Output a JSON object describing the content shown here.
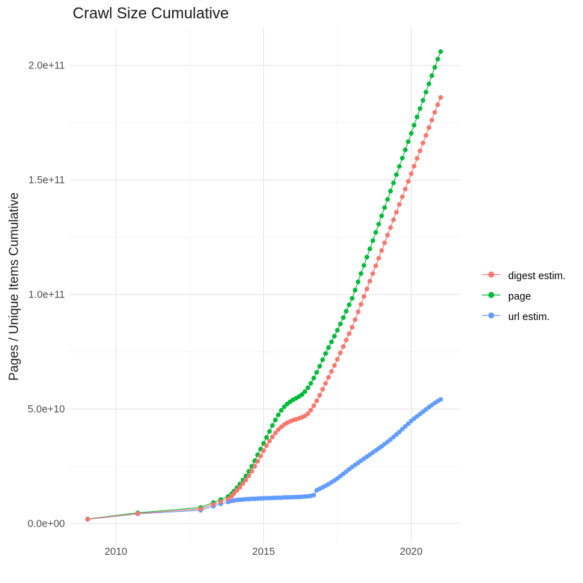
{
  "title": "Crawl Size Cumulative",
  "y_axis_title": "Pages / Unique Items Cumulative",
  "legend": {
    "position": "right",
    "items": [
      {
        "label": "digest estim.",
        "color": "#F8766D"
      },
      {
        "label": "page",
        "color": "#00BA38"
      },
      {
        "label": "url estim.",
        "color": "#619CFF"
      }
    ]
  },
  "colors": {
    "background": "#ffffff",
    "grid_major": "#e5e5e5",
    "grid_minor": "#f2f2f2",
    "axis_text": "#4d4d4d",
    "title_text": "#1a1a1a"
  },
  "chart_data": {
    "type": "scatter",
    "title": "Crawl Size Cumulative",
    "xlabel": "",
    "ylabel": "Pages / Unique Items Cumulative",
    "grid": true,
    "legend_position": "right",
    "x_unit": "year (decimal)",
    "y_unit": "items, value stored in units of 1e10",
    "xlim": [
      2008.44,
      2021.66
    ],
    "ylim_e10": [
      -0.84,
      21.62
    ],
    "x_ticks": [
      {
        "value": 2010,
        "label": "2010"
      },
      {
        "value": 2015,
        "label": "2015"
      },
      {
        "value": 2020,
        "label": "2020"
      }
    ],
    "x_minor_ticks": [
      2012.5,
      2017.5
    ],
    "y_ticks": [
      {
        "value_e10": 0,
        "label": "0.0e+00"
      },
      {
        "value_e10": 5,
        "label": "5.0e+10"
      },
      {
        "value_e10": 10,
        "label": "1.0e+11"
      },
      {
        "value_e10": 15,
        "label": "1.5e+11"
      },
      {
        "value_e10": 20,
        "label": "2.0e+11"
      }
    ],
    "y_minor_ticks_e10": [
      2.5,
      7.5,
      12.5,
      17.5
    ],
    "series": [
      {
        "name": "digest estim.",
        "color": "#F8766D",
        "points": [
          [
            2009.04,
            0.19
          ],
          [
            2010.74,
            0.44
          ],
          [
            2012.87,
            0.64
          ],
          [
            2013.3,
            0.84
          ],
          [
            2013.55,
            0.96
          ],
          [
            2013.8,
            1.08
          ],
          [
            2013.92,
            1.2
          ],
          [
            2014.0,
            1.32
          ],
          [
            2014.1,
            1.45
          ],
          [
            2014.2,
            1.59
          ],
          [
            2014.3,
            1.74
          ],
          [
            2014.4,
            1.9
          ],
          [
            2014.5,
            2.08
          ],
          [
            2014.6,
            2.28
          ],
          [
            2014.7,
            2.5
          ],
          [
            2014.8,
            2.72
          ],
          [
            2014.9,
            2.95
          ],
          [
            2015.0,
            3.18
          ],
          [
            2015.1,
            3.4
          ],
          [
            2015.2,
            3.6
          ],
          [
            2015.3,
            3.78
          ],
          [
            2015.4,
            3.95
          ],
          [
            2015.5,
            4.1
          ],
          [
            2015.6,
            4.22
          ],
          [
            2015.7,
            4.32
          ],
          [
            2015.8,
            4.4
          ],
          [
            2015.9,
            4.46
          ],
          [
            2016.0,
            4.51
          ],
          [
            2016.1,
            4.55
          ],
          [
            2016.2,
            4.59
          ],
          [
            2016.3,
            4.64
          ],
          [
            2016.4,
            4.7
          ],
          [
            2016.5,
            4.8
          ],
          [
            2016.6,
            4.95
          ],
          [
            2016.7,
            5.14
          ],
          [
            2016.8,
            5.36
          ],
          [
            2016.9,
            5.6
          ],
          [
            2017.0,
            5.86
          ],
          [
            2017.1,
            6.12
          ],
          [
            2017.2,
            6.38
          ],
          [
            2017.3,
            6.64
          ],
          [
            2017.4,
            6.9
          ],
          [
            2017.5,
            7.17
          ],
          [
            2017.6,
            7.45
          ],
          [
            2017.7,
            7.73
          ],
          [
            2017.8,
            8.01
          ],
          [
            2017.9,
            8.29
          ],
          [
            2018.0,
            8.57
          ],
          [
            2018.1,
            8.9
          ],
          [
            2018.2,
            9.24
          ],
          [
            2018.3,
            9.57
          ],
          [
            2018.4,
            9.91
          ],
          [
            2018.5,
            10.24
          ],
          [
            2018.6,
            10.58
          ],
          [
            2018.7,
            10.91
          ],
          [
            2018.8,
            11.25
          ],
          [
            2018.9,
            11.58
          ],
          [
            2019.0,
            11.92
          ],
          [
            2019.1,
            12.25
          ],
          [
            2019.2,
            12.59
          ],
          [
            2019.3,
            12.92
          ],
          [
            2019.4,
            13.26
          ],
          [
            2019.5,
            13.59
          ],
          [
            2019.6,
            13.93
          ],
          [
            2019.7,
            14.26
          ],
          [
            2019.8,
            14.6
          ],
          [
            2019.9,
            14.93
          ],
          [
            2020.0,
            15.27
          ],
          [
            2020.1,
            15.6
          ],
          [
            2020.2,
            15.94
          ],
          [
            2020.3,
            16.27
          ],
          [
            2020.4,
            16.61
          ],
          [
            2020.5,
            16.94
          ],
          [
            2020.6,
            17.28
          ],
          [
            2020.7,
            17.61
          ],
          [
            2020.8,
            17.95
          ],
          [
            2020.9,
            18.28
          ],
          [
            2021.0,
            18.6
          ]
        ]
      },
      {
        "name": "page",
        "color": "#00BA38",
        "points": [
          [
            2009.04,
            0.2
          ],
          [
            2010.74,
            0.47
          ],
          [
            2012.87,
            0.7
          ],
          [
            2013.3,
            0.92
          ],
          [
            2013.55,
            1.05
          ],
          [
            2013.8,
            1.18
          ],
          [
            2013.92,
            1.3
          ],
          [
            2014.0,
            1.42
          ],
          [
            2014.1,
            1.57
          ],
          [
            2014.2,
            1.73
          ],
          [
            2014.3,
            1.9
          ],
          [
            2014.4,
            2.08
          ],
          [
            2014.5,
            2.28
          ],
          [
            2014.6,
            2.5
          ],
          [
            2014.7,
            2.74
          ],
          [
            2014.8,
            3.0
          ],
          [
            2014.9,
            3.25
          ],
          [
            2015.0,
            3.5
          ],
          [
            2015.1,
            3.76
          ],
          [
            2015.2,
            4.02
          ],
          [
            2015.3,
            4.28
          ],
          [
            2015.4,
            4.52
          ],
          [
            2015.5,
            4.74
          ],
          [
            2015.6,
            4.94
          ],
          [
            2015.7,
            5.1
          ],
          [
            2015.8,
            5.22
          ],
          [
            2015.9,
            5.32
          ],
          [
            2016.0,
            5.4
          ],
          [
            2016.1,
            5.47
          ],
          [
            2016.2,
            5.54
          ],
          [
            2016.3,
            5.63
          ],
          [
            2016.4,
            5.76
          ],
          [
            2016.5,
            5.93
          ],
          [
            2016.6,
            6.12
          ],
          [
            2016.7,
            6.35
          ],
          [
            2016.8,
            6.6
          ],
          [
            2016.9,
            6.87
          ],
          [
            2017.0,
            7.15
          ],
          [
            2017.1,
            7.42
          ],
          [
            2017.2,
            7.68
          ],
          [
            2017.3,
            7.93
          ],
          [
            2017.4,
            8.18
          ],
          [
            2017.5,
            8.44
          ],
          [
            2017.6,
            8.71
          ],
          [
            2017.7,
            8.99
          ],
          [
            2017.8,
            9.27
          ],
          [
            2017.9,
            9.55
          ],
          [
            2018.0,
            9.83
          ],
          [
            2018.1,
            10.19
          ],
          [
            2018.2,
            10.55
          ],
          [
            2018.3,
            10.91
          ],
          [
            2018.4,
            11.27
          ],
          [
            2018.5,
            11.63
          ],
          [
            2018.6,
            11.99
          ],
          [
            2018.7,
            12.35
          ],
          [
            2018.8,
            12.71
          ],
          [
            2018.9,
            13.07
          ],
          [
            2019.0,
            13.43
          ],
          [
            2019.1,
            13.79
          ],
          [
            2019.2,
            14.15
          ],
          [
            2019.3,
            14.51
          ],
          [
            2019.4,
            14.87
          ],
          [
            2019.5,
            15.23
          ],
          [
            2019.6,
            15.59
          ],
          [
            2019.7,
            15.95
          ],
          [
            2019.8,
            16.31
          ],
          [
            2019.9,
            16.67
          ],
          [
            2020.0,
            17.03
          ],
          [
            2020.1,
            17.39
          ],
          [
            2020.2,
            17.75
          ],
          [
            2020.3,
            18.11
          ],
          [
            2020.4,
            18.47
          ],
          [
            2020.5,
            18.83
          ],
          [
            2020.6,
            19.19
          ],
          [
            2020.7,
            19.55
          ],
          [
            2020.8,
            19.91
          ],
          [
            2020.9,
            20.27
          ],
          [
            2021.0,
            20.6
          ]
        ]
      },
      {
        "name": "url estim.",
        "color": "#619CFF",
        "points": [
          [
            2009.04,
            0.18
          ],
          [
            2010.74,
            0.42
          ],
          [
            2012.87,
            0.58
          ],
          [
            2013.3,
            0.76
          ],
          [
            2013.55,
            0.86
          ],
          [
            2013.8,
            0.94
          ],
          [
            2013.92,
            0.99
          ],
          [
            2014.0,
            1.01
          ],
          [
            2014.1,
            1.03
          ],
          [
            2014.2,
            1.04
          ],
          [
            2014.3,
            1.05
          ],
          [
            2014.4,
            1.06
          ],
          [
            2014.5,
            1.07
          ],
          [
            2014.6,
            1.08
          ],
          [
            2014.7,
            1.08
          ],
          [
            2014.8,
            1.09
          ],
          [
            2014.9,
            1.1
          ],
          [
            2015.0,
            1.1
          ],
          [
            2015.1,
            1.11
          ],
          [
            2015.2,
            1.11
          ],
          [
            2015.3,
            1.12
          ],
          [
            2015.4,
            1.12
          ],
          [
            2015.5,
            1.13
          ],
          [
            2015.6,
            1.13
          ],
          [
            2015.7,
            1.14
          ],
          [
            2015.8,
            1.14
          ],
          [
            2015.9,
            1.15
          ],
          [
            2016.0,
            1.15
          ],
          [
            2016.1,
            1.16
          ],
          [
            2016.2,
            1.16
          ],
          [
            2016.3,
            1.17
          ],
          [
            2016.4,
            1.18
          ],
          [
            2016.5,
            1.19
          ],
          [
            2016.6,
            1.21
          ],
          [
            2016.7,
            1.24
          ],
          [
            2016.8,
            1.45
          ],
          [
            2016.9,
            1.52
          ],
          [
            2017.0,
            1.58
          ],
          [
            2017.1,
            1.65
          ],
          [
            2017.2,
            1.72
          ],
          [
            2017.3,
            1.8
          ],
          [
            2017.4,
            1.88
          ],
          [
            2017.5,
            1.97
          ],
          [
            2017.6,
            2.07
          ],
          [
            2017.7,
            2.17
          ],
          [
            2017.8,
            2.27
          ],
          [
            2017.9,
            2.37
          ],
          [
            2018.0,
            2.47
          ],
          [
            2018.1,
            2.56
          ],
          [
            2018.2,
            2.65
          ],
          [
            2018.3,
            2.74
          ],
          [
            2018.4,
            2.83
          ],
          [
            2018.5,
            2.92
          ],
          [
            2018.6,
            3.01
          ],
          [
            2018.7,
            3.1
          ],
          [
            2018.8,
            3.19
          ],
          [
            2018.9,
            3.28
          ],
          [
            2019.0,
            3.37
          ],
          [
            2019.1,
            3.47
          ],
          [
            2019.2,
            3.57
          ],
          [
            2019.3,
            3.67
          ],
          [
            2019.4,
            3.78
          ],
          [
            2019.5,
            3.89
          ],
          [
            2019.6,
            4.0
          ],
          [
            2019.7,
            4.12
          ],
          [
            2019.8,
            4.24
          ],
          [
            2019.9,
            4.36
          ],
          [
            2020.0,
            4.48
          ],
          [
            2020.1,
            4.58
          ],
          [
            2020.2,
            4.68
          ],
          [
            2020.3,
            4.78
          ],
          [
            2020.4,
            4.88
          ],
          [
            2020.5,
            4.98
          ],
          [
            2020.6,
            5.08
          ],
          [
            2020.7,
            5.17
          ],
          [
            2020.8,
            5.26
          ],
          [
            2020.9,
            5.34
          ],
          [
            2021.0,
            5.42
          ]
        ]
      }
    ]
  }
}
